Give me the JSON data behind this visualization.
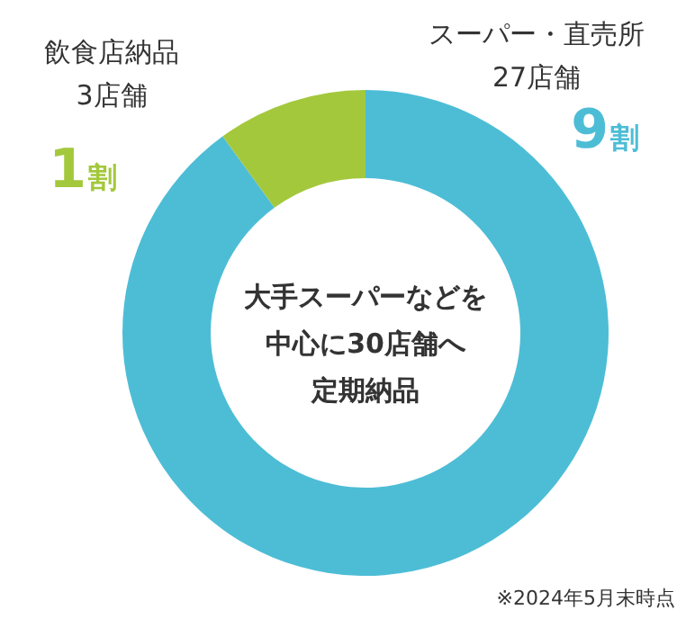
{
  "chart_data": {
    "type": "donut",
    "categories": [
      "スーパー・直売所",
      "飲食店納品"
    ],
    "values": [
      27,
      3
    ],
    "value_labels": [
      "27店舗",
      "3店舗"
    ],
    "colors": [
      "#4dbdd6",
      "#a3c83c"
    ],
    "annotations": [
      "9割",
      "1割",
      "大手スーパーなどを",
      "中心に30店舗へ",
      "定期納品",
      "※2024年5月末時点"
    ]
  }
}
